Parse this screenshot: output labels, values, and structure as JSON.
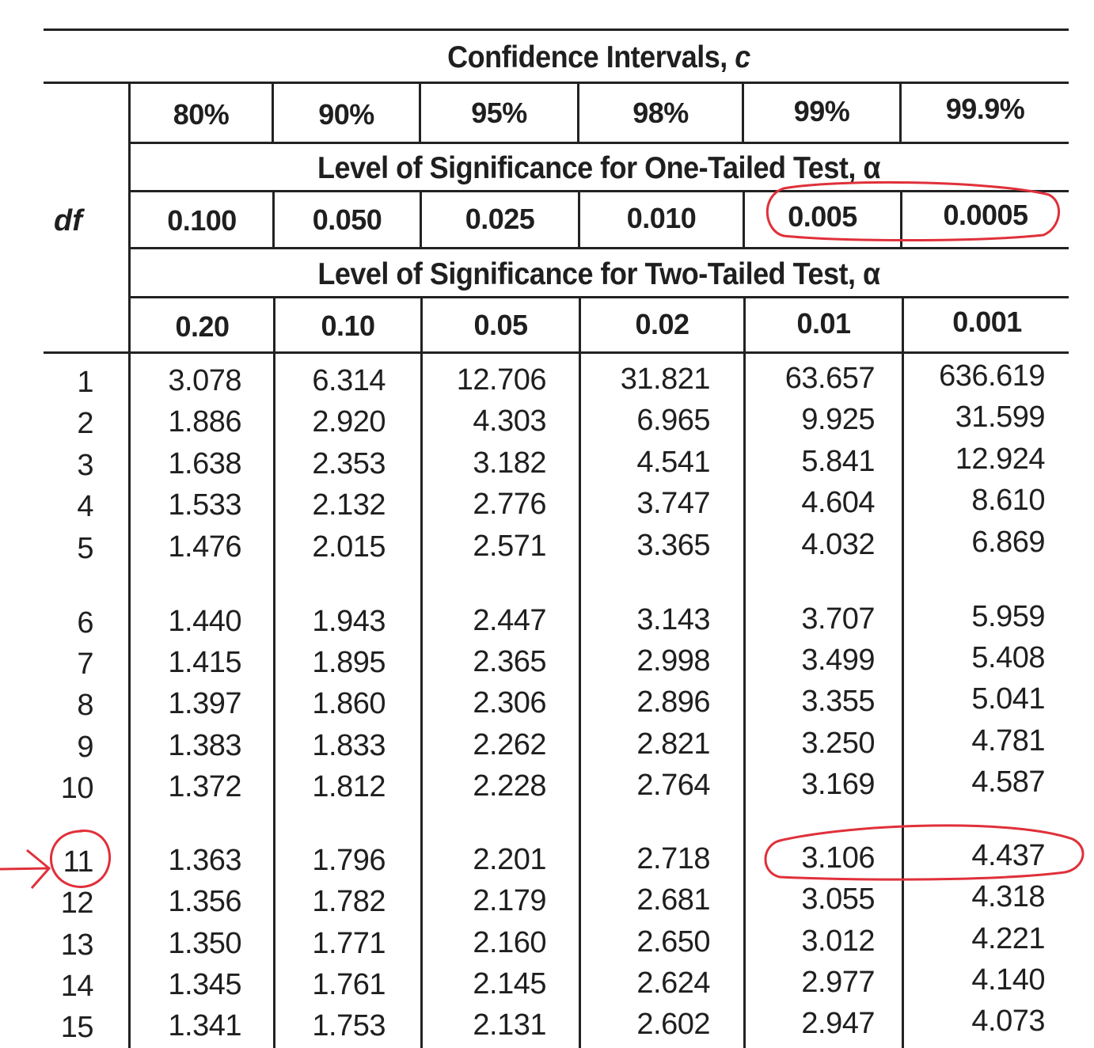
{
  "header": {
    "confidence_label": "Confidence Intervals, ",
    "confidence_symbol": "c",
    "confidence_levels": [
      "80%",
      "90%",
      "95%",
      "98%",
      "99%",
      "99.9%"
    ],
    "one_tailed_label": "Level of Significance for One-Tailed Test, α",
    "one_tailed_alphas": [
      "0.100",
      "0.050",
      "0.025",
      "0.010",
      "0.005",
      "0.0005"
    ],
    "two_tailed_label": "Level of Significance for Two-Tailed Test, α",
    "two_tailed_alphas": [
      "0.20",
      "0.10",
      "0.05",
      "0.02",
      "0.01",
      "0.001"
    ],
    "df_label": "df"
  },
  "rows": [
    {
      "df": "1",
      "values": [
        "3.078",
        "6.314",
        "12.706",
        "31.821",
        "63.657",
        "636.619"
      ]
    },
    {
      "df": "2",
      "values": [
        "1.886",
        "2.920",
        "4.303",
        "6.965",
        "9.925",
        "31.599"
      ]
    },
    {
      "df": "3",
      "values": [
        "1.638",
        "2.353",
        "3.182",
        "4.541",
        "5.841",
        "12.924"
      ]
    },
    {
      "df": "4",
      "values": [
        "1.533",
        "2.132",
        "2.776",
        "3.747",
        "4.604",
        "8.610"
      ]
    },
    {
      "df": "5",
      "values": [
        "1.476",
        "2.015",
        "2.571",
        "3.365",
        "4.032",
        "6.869"
      ]
    },
    {
      "df": "6",
      "values": [
        "1.440",
        "1.943",
        "2.447",
        "3.143",
        "3.707",
        "5.959"
      ]
    },
    {
      "df": "7",
      "values": [
        "1.415",
        "1.895",
        "2.365",
        "2.998",
        "3.499",
        "5.408"
      ]
    },
    {
      "df": "8",
      "values": [
        "1.397",
        "1.860",
        "2.306",
        "2.896",
        "3.355",
        "5.041"
      ]
    },
    {
      "df": "9",
      "values": [
        "1.383",
        "1.833",
        "2.262",
        "2.821",
        "3.250",
        "4.781"
      ]
    },
    {
      "df": "10",
      "values": [
        "1.372",
        "1.812",
        "2.228",
        "2.764",
        "3.169",
        "4.587"
      ]
    },
    {
      "df": "11",
      "values": [
        "1.363",
        "1.796",
        "2.201",
        "2.718",
        "3.106",
        "4.437"
      ]
    },
    {
      "df": "12",
      "values": [
        "1.356",
        "1.782",
        "2.179",
        "2.681",
        "3.055",
        "4.318"
      ]
    },
    {
      "df": "13",
      "values": [
        "1.350",
        "1.771",
        "2.160",
        "2.650",
        "3.012",
        "4.221"
      ]
    },
    {
      "df": "14",
      "values": [
        "1.345",
        "1.761",
        "2.145",
        "2.624",
        "2.977",
        "4.140"
      ]
    },
    {
      "df": "15",
      "values": [
        "1.341",
        "1.753",
        "2.131",
        "2.602",
        "2.947",
        "4.073"
      ]
    }
  ],
  "annotation": {
    "ink_color": "#e0303a",
    "circled_df": "11",
    "circled_one_tailed_alphas": [
      "0.005",
      "0.0005"
    ],
    "circled_values": [
      "3.106",
      "4.437"
    ]
  }
}
